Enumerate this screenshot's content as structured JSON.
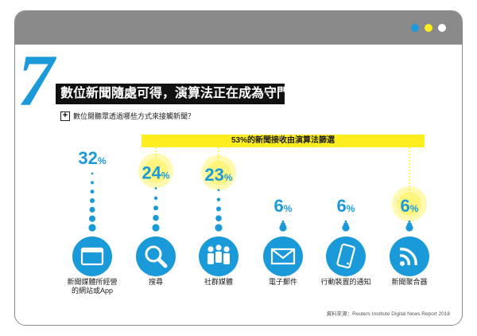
{
  "colors": {
    "accent": "#1a9ad8",
    "highlight": "#ffee1f",
    "frame": "#8a8a8a",
    "dark": "#111111"
  },
  "window_dots": [
    {
      "color": "#1a9ad8"
    },
    {
      "color": "#ffee1f"
    },
    {
      "color": "#ffffff"
    }
  ],
  "header": {
    "number": "7",
    "title": "數位新聞隨處可得，演算法正在成為守門人",
    "subtitle": "數位閱聽眾透過哪些方式來接觸新聞？"
  },
  "banner": {
    "text": "53%的新聞接收由演算法篩選"
  },
  "source": "資料來源：Reuters Institute Digital News Report 2018",
  "chart_data": {
    "type": "icon-bar",
    "title": "數位閱聽眾透過哪些方式來接觸新聞？",
    "unit": "%",
    "categories": [
      {
        "label_lines": [
          "新聞媒體所經營",
          "的網站或App"
        ],
        "value": 32,
        "icon": "browser-icon",
        "algorithmic": false
      },
      {
        "label_lines": [
          "搜尋"
        ],
        "value": 24,
        "icon": "magnifier-icon",
        "algorithmic": true
      },
      {
        "label_lines": [
          "社群媒體"
        ],
        "value": 23,
        "icon": "people-icon",
        "algorithmic": true
      },
      {
        "label_lines": [
          "電子郵件"
        ],
        "value": 6,
        "icon": "envelope-icon",
        "algorithmic": false
      },
      {
        "label_lines": [
          "行動裝置的通知"
        ],
        "value": 6,
        "icon": "phone-icon",
        "algorithmic": false
      },
      {
        "label_lines": [
          "新聞聚合器"
        ],
        "value": 6,
        "icon": "rss-icon",
        "algorithmic": true
      }
    ],
    "annotation": "53%的新聞接收由演算法篩選",
    "source": "資料來源：Reuters Institute Digital News Report 2018"
  }
}
